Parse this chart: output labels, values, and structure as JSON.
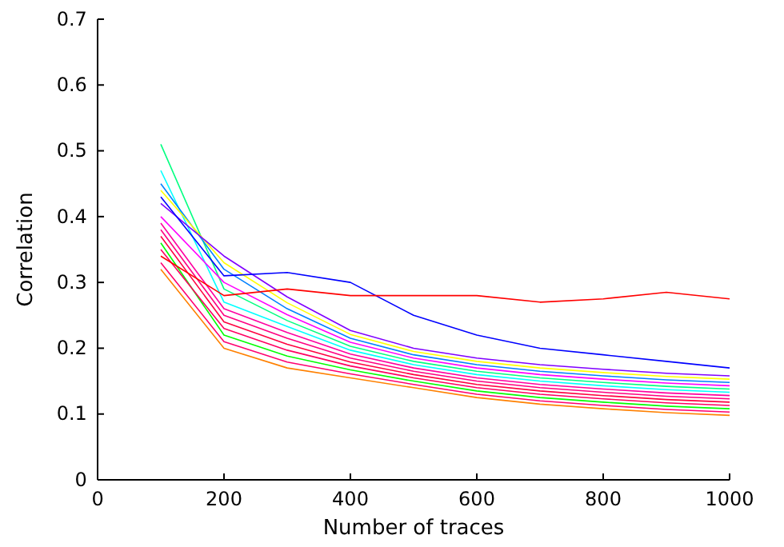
{
  "chart_data": {
    "type": "line",
    "xlabel": "Number of traces",
    "ylabel": "Correlation",
    "x": [
      100,
      200,
      300,
      400,
      500,
      600,
      700,
      800,
      900,
      1000
    ],
    "xlim": [
      0,
      1000
    ],
    "xticks": [
      0,
      200,
      400,
      600,
      800,
      1000
    ],
    "ylim": [
      0,
      0.7
    ],
    "yticks": [
      0,
      0.1,
      0.2,
      0.3,
      0.4,
      0.5,
      0.6,
      0.7
    ],
    "series": [
      {
        "color": "#ff8000",
        "values": [
          0.32,
          0.2,
          0.17,
          0.155,
          0.14,
          0.125,
          0.115,
          0.108,
          0.102,
          0.098
        ]
      },
      {
        "color": "#ff0070",
        "values": [
          0.33,
          0.21,
          0.179,
          0.161,
          0.145,
          0.13,
          0.12,
          0.113,
          0.107,
          0.103
        ]
      },
      {
        "color": "#00ff00",
        "values": [
          0.36,
          0.22,
          0.188,
          0.167,
          0.15,
          0.135,
          0.125,
          0.118,
          0.112,
          0.108
        ]
      },
      {
        "color": "#ff0060",
        "values": [
          0.35,
          0.23,
          0.197,
          0.173,
          0.155,
          0.14,
          0.13,
          0.123,
          0.117,
          0.113
        ]
      },
      {
        "color": "#ff0040",
        "values": [
          0.37,
          0.24,
          0.206,
          0.179,
          0.16,
          0.145,
          0.135,
          0.128,
          0.122,
          0.118
        ]
      },
      {
        "color": "#ff0080",
        "values": [
          0.38,
          0.25,
          0.215,
          0.185,
          0.165,
          0.15,
          0.14,
          0.133,
          0.127,
          0.123
        ]
      },
      {
        "color": "#ff00a0",
        "values": [
          0.39,
          0.26,
          0.224,
          0.191,
          0.17,
          0.155,
          0.145,
          0.138,
          0.132,
          0.128
        ]
      },
      {
        "color": "#00ffff",
        "values": [
          0.47,
          0.27,
          0.233,
          0.197,
          0.175,
          0.16,
          0.15,
          0.143,
          0.137,
          0.133
        ]
      },
      {
        "color": "#00ff80",
        "values": [
          0.51,
          0.29,
          0.242,
          0.203,
          0.18,
          0.165,
          0.155,
          0.148,
          0.142,
          0.138
        ]
      },
      {
        "color": "#ff00ff",
        "values": [
          0.4,
          0.3,
          0.251,
          0.209,
          0.185,
          0.17,
          0.16,
          0.153,
          0.147,
          0.143
        ]
      },
      {
        "color": "#0080ff",
        "values": [
          0.45,
          0.32,
          0.26,
          0.215,
          0.19,
          0.175,
          0.165,
          0.158,
          0.152,
          0.148
        ]
      },
      {
        "color": "#ffff00",
        "values": [
          0.44,
          0.33,
          0.269,
          0.221,
          0.195,
          0.18,
          0.17,
          0.163,
          0.157,
          0.153
        ]
      },
      {
        "color": "#8000ff",
        "values": [
          0.42,
          0.34,
          0.278,
          0.227,
          0.2,
          0.185,
          0.175,
          0.168,
          0.162,
          0.158
        ]
      },
      {
        "color": "#0000ff",
        "values": [
          0.43,
          0.31,
          0.315,
          0.3,
          0.25,
          0.22,
          0.2,
          0.19,
          0.18,
          0.17
        ]
      },
      {
        "color": "#ff0000",
        "values": [
          0.34,
          0.28,
          0.29,
          0.28,
          0.28,
          0.28,
          0.27,
          0.275,
          0.285,
          0.275
        ]
      }
    ]
  }
}
